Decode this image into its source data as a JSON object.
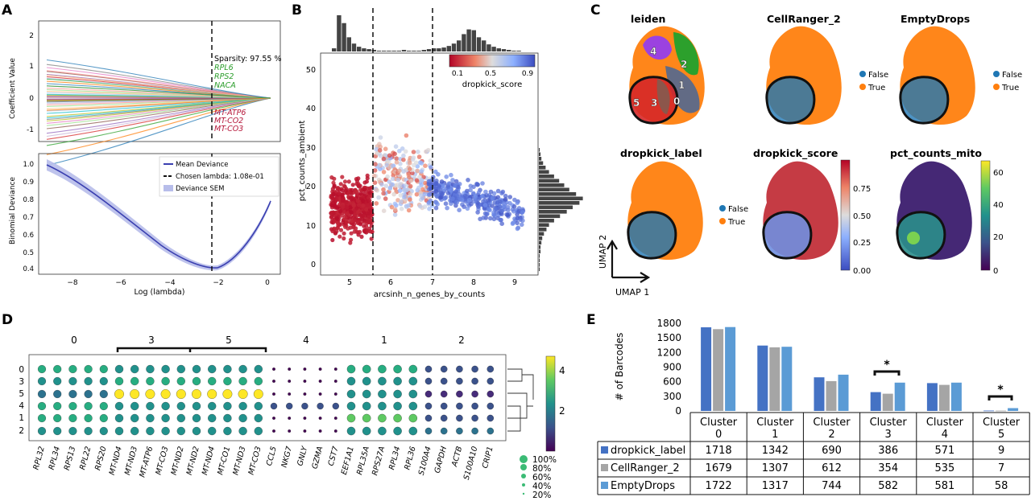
{
  "panels": {
    "A": {
      "letter": "A",
      "top_plot": {
        "ylabel": "Coefficient Value",
        "yticks": [
          "2",
          "1",
          "0",
          "-1"
        ],
        "sparsity_label": "Sparsity: 97.55 %",
        "positive_genes": [
          "RPL6",
          "RPS2",
          "NACA"
        ],
        "negative_genes": [
          "MT-ATP6",
          "MT-CO2",
          "MT-CO3"
        ]
      },
      "bottom_plot": {
        "ylabel": "Binomial Deviance",
        "xlabel": "Log (lambda)",
        "yticks": [
          "1.0",
          "0.9",
          "0.8",
          "0.7",
          "0.6",
          "0.5",
          "0.4"
        ],
        "xticks": [
          "−8",
          "−6",
          "−4",
          "−2",
          "0"
        ],
        "legend": [
          "Mean Deviance",
          "Chosen lambda: 1.08e-01",
          "Deviance SEM"
        ]
      }
    },
    "B": {
      "letter": "B",
      "ylabel": "pct_counts_ambient",
      "xlabel": "arcsinh_n_genes_by_counts",
      "yticks": [
        "50",
        "40",
        "30",
        "20",
        "10",
        "0"
      ],
      "xticks": [
        "5",
        "6",
        "7",
        "8",
        "9"
      ],
      "colorbar_label": "dropkick_score",
      "colorbar_ticks": [
        "0.1",
        "0.5",
        "0.9"
      ]
    },
    "C": {
      "letter": "C",
      "titles": [
        "leiden",
        "CellRanger_2",
        "EmptyDrops",
        "dropkick_label",
        "dropkick_score",
        "pct_counts_mito"
      ],
      "cluster_numbers": [
        "4",
        "2",
        "1",
        "5",
        "3",
        "0"
      ],
      "legend_false": "False",
      "legend_true": "True",
      "score_ticks": [
        "0.75",
        "0.50",
        "0.25",
        "0.00"
      ],
      "mito_ticks": [
        "60",
        "40",
        "20",
        "0"
      ],
      "umap1": "UMAP 1",
      "umap2": "UMAP 2"
    },
    "D": {
      "letter": "D",
      "group_labels": [
        "0",
        "3",
        "5",
        "4",
        "1",
        "2"
      ],
      "row_labels": [
        "0",
        "3",
        "5",
        "4",
        "1",
        "2"
      ],
      "genes": [
        "RPL32",
        "RPL34",
        "RPS13",
        "RPL22",
        "RPS20",
        "MT-ND4",
        "MT-ND3",
        "MT-ATP6",
        "MT-CO3",
        "MT-ND2",
        "MT-ND2",
        "MT-ND4",
        "MT-CO1",
        "MT-ND3",
        "MT-CO3",
        "CCL5",
        "NKG7",
        "GNLY",
        "GZMA",
        "CST7",
        "EEF1A1",
        "RPL35A",
        "RPS27A",
        "RPL34",
        "RPL36",
        "S100A4",
        "GAPDH",
        "ACTB",
        "S100A10",
        "CRIP1"
      ],
      "colorbar_ticks": [
        "4",
        "2"
      ],
      "size_legend": [
        "100%",
        "80%",
        "60%",
        "40%",
        "20%"
      ]
    },
    "E": {
      "letter": "E",
      "ylabel": "# of Barcodes",
      "yticks": [
        "1800",
        "1500",
        "1200",
        "900",
        "600",
        "300",
        "0"
      ],
      "significance": "*",
      "colors": {
        "dropkick_label": "#4472C4",
        "CellRanger_2": "#A5A5A5",
        "EmptyDrops": "#5B9BD5"
      }
    }
  },
  "chart_data": {
    "type": "bar",
    "categories": [
      "Cluster 0",
      "Cluster 1",
      "Cluster 2",
      "Cluster 3",
      "Cluster 4",
      "Cluster 5"
    ],
    "ylabel": "# of Barcodes",
    "ylim": [
      0,
      1800
    ],
    "series": [
      {
        "name": "dropkick_label",
        "values": [
          1718,
          1342,
          690,
          386,
          571,
          9
        ]
      },
      {
        "name": "CellRanger_2",
        "values": [
          1679,
          1307,
          612,
          354,
          535,
          7
        ]
      },
      {
        "name": "EmptyDrops",
        "values": [
          1722,
          1317,
          744,
          582,
          581,
          58
        ]
      }
    ]
  }
}
